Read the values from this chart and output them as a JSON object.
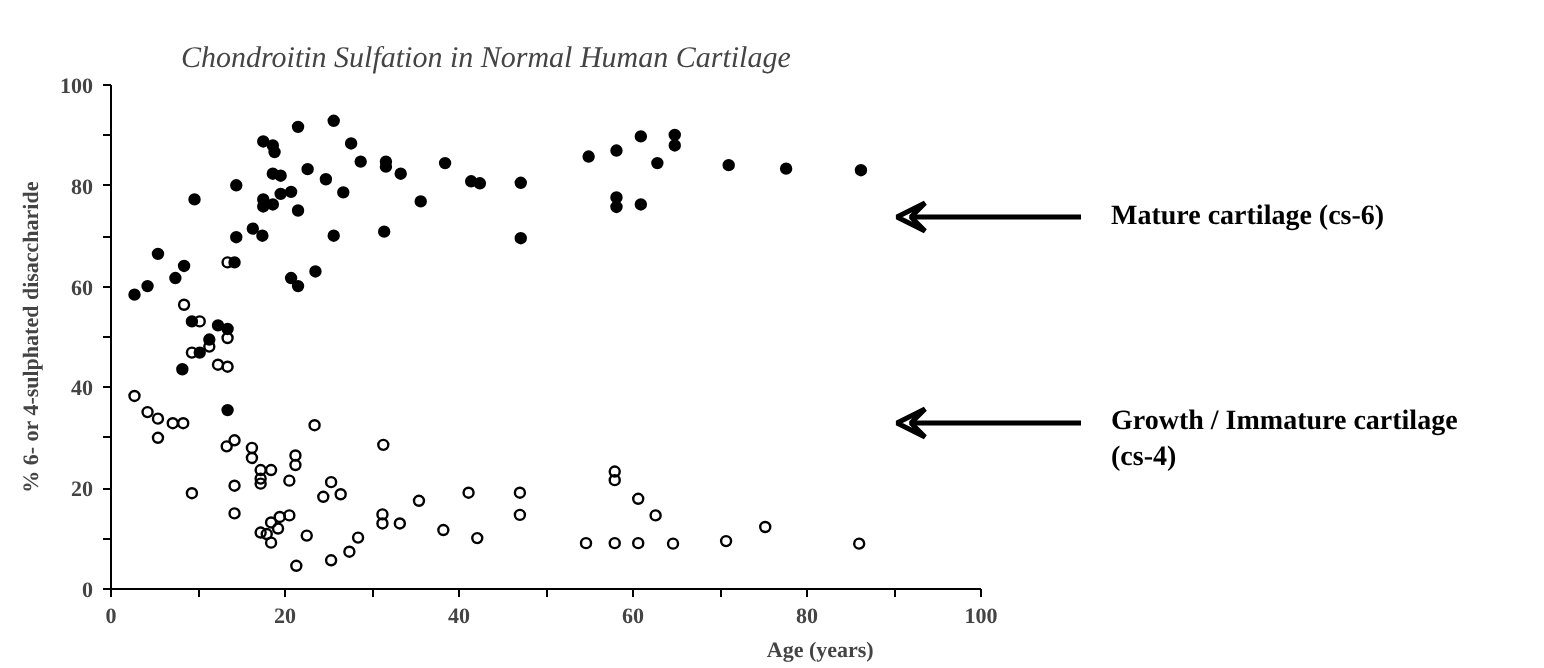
{
  "chart_data": {
    "type": "scatter",
    "title": "Chondroitin Sulfation in Normal Human Cartilage",
    "xlabel": "Age  (years)",
    "ylabel": "% 6- or 4-sulphated disaccharide",
    "xlim": [
      0,
      100
    ],
    "ylim": [
      0,
      100
    ],
    "xticks": [
      0,
      {
        "value": 10,
        "label": null
      },
      20,
      {
        "value": 30,
        "label": null
      },
      40,
      {
        "value": 50,
        "label": null
      },
      60,
      {
        "value": 70,
        "label": null
      },
      80,
      {
        "value": 90,
        "label": null
      },
      100
    ],
    "yticks": [
      0,
      {
        "value": 10,
        "label": null
      },
      20,
      {
        "value": 30,
        "label": null
      },
      40,
      {
        "value": 50,
        "label": null
      },
      60,
      {
        "value": 70,
        "label": null
      },
      80,
      {
        "value": 90,
        "label": null
      },
      100
    ],
    "grid": false,
    "annotations": [
      "Mature cartilage (cs-6)",
      "Growth / Immature cartilage (cs-4)"
    ],
    "series": [
      {
        "color": "#000000",
        "marker": "circle",
        "x": [
          2.7,
          4.2,
          5.4,
          7.4,
          8.4,
          9.6,
          14.2,
          14.4,
          14.4,
          16.3,
          17.4,
          17.5,
          18.6,
          18.8,
          18.6,
          19.5,
          17.5,
          17.5,
          18.6,
          19.5,
          20.7,
          21.5,
          21.5,
          20.7,
          21.5,
          22.6,
          23.5,
          24.7,
          25.6,
          25.6,
          26.7,
          27.6,
          28.7,
          31.6,
          31.6,
          31.4,
          33.3,
          35.6,
          38.4,
          41.4,
          42.4,
          47.1,
          47.1,
          54.9,
          58.1,
          60.9,
          62.8,
          64.8,
          64.8,
          58.1,
          58.1,
          60.9,
          71.0,
          77.6,
          86.2,
          9.3,
          11.3,
          10.2,
          8.2,
          12.3,
          13.4,
          13.4
        ],
        "values": [
          58.4,
          60.1,
          66.5,
          61.7,
          64.1,
          77.3,
          64.8,
          69.8,
          80.1,
          71.5,
          70.1,
          88.8,
          88.0,
          86.7,
          82.4,
          82.0,
          77.3,
          75.9,
          76.3,
          78.4,
          78.8,
          75.1,
          91.7,
          61.7,
          60.1,
          83.3,
          63.0,
          81.3,
          92.9,
          70.1,
          78.7,
          88.4,
          84.8,
          84.8,
          83.8,
          70.9,
          82.4,
          76.9,
          84.5,
          80.9,
          80.5,
          80.6,
          69.6,
          85.8,
          87.0,
          89.8,
          84.5,
          90.1,
          88.0,
          77.7,
          75.8,
          76.3,
          84.1,
          83.4,
          83.1,
          53.1,
          49.5,
          46.9,
          43.6,
          52.3,
          51.6,
          35.5
        ]
      },
      {
        "color": "#000000",
        "marker": "circle_open",
        "x": [
          13.4,
          8.4,
          10.2,
          11.3,
          9.3,
          12.3,
          13.4,
          13.4,
          2.7,
          4.2,
          5.4,
          5.4,
          7.1,
          8.3,
          9.3,
          13.3,
          14.2,
          14.2,
          14.2,
          16.2,
          16.2,
          17.2,
          18.4,
          17.2,
          17.2,
          20.5,
          21.2,
          21.2,
          23.4,
          17.2,
          17.9,
          18.4,
          18.4,
          19.2,
          19.4,
          20.5,
          21.3,
          22.5,
          24.4,
          25.3,
          26.4,
          25.3,
          27.4,
          28.4,
          31.3,
          31.2,
          31.2,
          33.2,
          35.4,
          38.2,
          41.1,
          42.1,
          47.0,
          47.0,
          54.6,
          57.9,
          57.9,
          57.9,
          60.6,
          60.6,
          62.6,
          64.6,
          70.7,
          75.2,
          86.0
        ],
        "values": [
          64.8,
          56.4,
          53.1,
          48.1,
          46.9,
          44.5,
          44.1,
          49.8,
          38.3,
          35.1,
          33.8,
          30.0,
          32.9,
          32.9,
          19.0,
          28.3,
          29.5,
          20.5,
          15.0,
          28.0,
          26.0,
          23.6,
          23.6,
          21.9,
          20.9,
          21.5,
          26.5,
          24.6,
          32.5,
          11.2,
          10.9,
          9.2,
          13.2,
          12.0,
          14.3,
          14.6,
          4.6,
          10.6,
          18.3,
          21.2,
          18.8,
          5.7,
          7.4,
          10.2,
          28.6,
          14.8,
          13.0,
          13.0,
          17.5,
          11.7,
          19.1,
          10.1,
          19.1,
          14.7,
          9.1,
          23.3,
          21.6,
          9.1,
          17.9,
          9.1,
          14.6,
          9.0,
          9.5,
          12.3,
          9.0
        ]
      }
    ]
  }
}
